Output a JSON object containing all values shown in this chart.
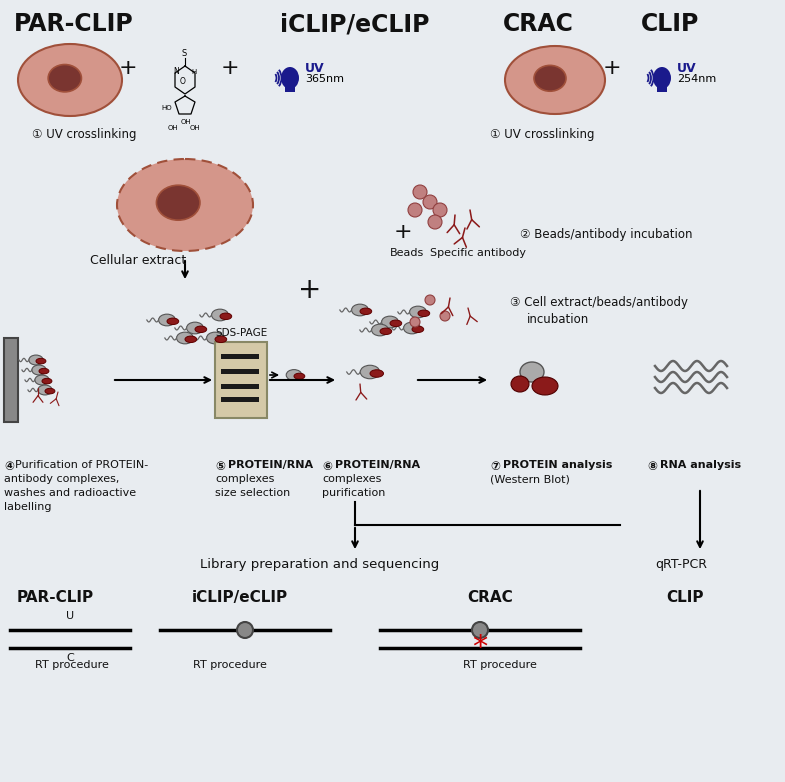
{
  "bg_color": "#e8ecf0",
  "text_color": "#111111",
  "dark_red": "#8B1A1A",
  "gray_dark": "#555555",
  "gray_med": "#888888",
  "navy": "#1a1a8c",
  "red_star": "#cc0000",
  "cell_fill": "#d4968a",
  "cell_stroke": "#a0503a",
  "gel_fill": "#d4c9a8",
  "gel_stroke": "#888866",
  "mag_fill": "#888888",
  "bead_fill": "#c08080",
  "ab_color": "#8B1A1A",
  "header_parclip": "PAR-CLIP",
  "header_iclip": "iCLIP/eCLIP",
  "header_crac": "CRAC",
  "header_clip": "CLIP",
  "uv_label_365": "UV",
  "nm_365": "365nm",
  "uv_label_254": "UV",
  "nm_254": "254nm",
  "step1_text": "UV crosslinking",
  "cellular_extract": "Cellular extract",
  "beads_label": "Beads",
  "antibody_label": "Specific antibody",
  "step2_text": "Beads/antibody incubation",
  "step3_line1": "Cell extract/beads/antibody",
  "step3_line2": "incubation",
  "sds_page": "SDS-PAGE",
  "step4_line1": "Purification of PROTEIN-",
  "step4_line2": "antibody complexes,",
  "step4_line3": "washes and radioactive",
  "step4_line4": "labelling",
  "step5_line1": "PROTEIN/RNA",
  "step5_line2": "complexes",
  "step5_line3": "size selection",
  "step6_line1": "PROTEIN/RNA",
  "step6_line2": "complexes",
  "step6_line3": "purification",
  "step7_line1": "PROTEIN analysis",
  "step7_line2": "(Western Blot)",
  "step8_text": "RNA analysis",
  "lib_seq": "Library preparation and sequencing",
  "qrt_pcr": "qRT-PCR",
  "bottom_parclip": "PAR-CLIP",
  "bottom_iclip": "iCLIP/eCLIP",
  "bottom_crac": "CRAC",
  "bottom_clip": "CLIP",
  "u_label": "U",
  "c_label": "C",
  "rt_procedure": "RT procedure"
}
